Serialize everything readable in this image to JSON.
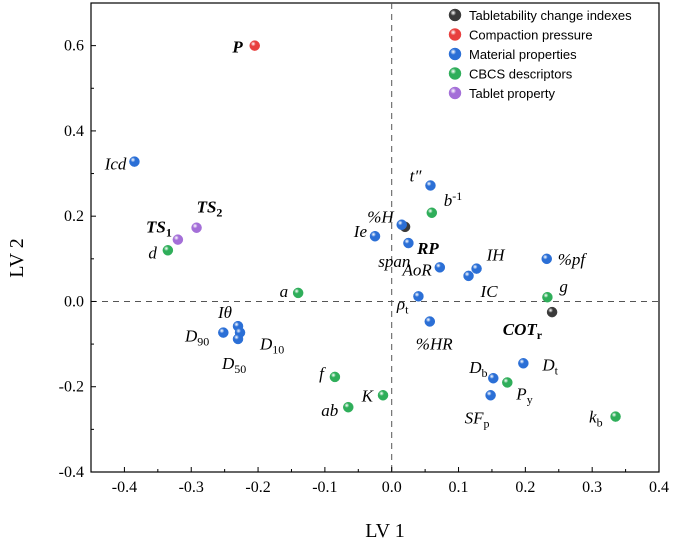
{
  "chart_data": {
    "type": "scatter",
    "xlabel": "LV 1",
    "ylabel": "LV 2",
    "xlim": [
      -0.45,
      0.4
    ],
    "ylim": [
      -0.4,
      0.7
    ],
    "xticks": [
      -0.4,
      -0.3,
      -0.2,
      -0.1,
      0.0,
      0.1,
      0.2,
      0.3,
      0.4
    ],
    "yticks": [
      -0.4,
      -0.2,
      0.0,
      0.2,
      0.4,
      0.6
    ],
    "xtick_labels": [
      "-0.4",
      "-0.3",
      "-0.2",
      "-0.1",
      "0.0",
      "0.1",
      "0.2",
      "0.3",
      "0.4"
    ],
    "ytick_labels": [
      "-0.4",
      "-0.2",
      "0.0",
      "0.2",
      "0.4",
      "0.6"
    ],
    "grid": false,
    "zero_lines": true,
    "legend_position": "top-right",
    "series": [
      {
        "name": "Tabletability change indexes",
        "color": "#3a3a3a",
        "points": [
          {
            "label": "RP",
            "x": 0.02,
            "y": 0.175,
            "bold": true
          },
          {
            "label": "COT",
            "sub": "r",
            "x": 0.24,
            "y": -0.025,
            "bold": true
          }
        ]
      },
      {
        "name": "Compaction pressure",
        "color": "#e8403e",
        "points": [
          {
            "label": "P",
            "x": -0.205,
            "y": 0.6,
            "bold": true,
            "italic": false
          }
        ]
      },
      {
        "name": "Material properties",
        "color": "#2b6fd6",
        "points": [
          {
            "label": "Icd",
            "x": -0.385,
            "y": 0.328
          },
          {
            "label": "t″",
            "x": 0.058,
            "y": 0.272
          },
          {
            "label": "%H",
            "x": 0.015,
            "y": 0.18
          },
          {
            "label": "Ie",
            "x": -0.025,
            "y": 0.153
          },
          {
            "label": "span",
            "x": 0.025,
            "y": 0.137
          },
          {
            "label": "AoR",
            "x": 0.072,
            "y": 0.08
          },
          {
            "label": "IH",
            "x": 0.127,
            "y": 0.077
          },
          {
            "label": "IC",
            "x": 0.115,
            "y": 0.06
          },
          {
            "label": "%pf",
            "x": 0.232,
            "y": 0.1
          },
          {
            "label": "ρ",
            "sub": "t",
            "x": 0.04,
            "y": 0.012
          },
          {
            "label": "%HR",
            "x": 0.057,
            "y": -0.047
          },
          {
            "label": "Iθ",
            "x": -0.23,
            "y": -0.058
          },
          {
            "label": "D",
            "sub": "10",
            "x": -0.227,
            "y": -0.073
          },
          {
            "label": "D",
            "sub": "90",
            "x": -0.252,
            "y": -0.073
          },
          {
            "label": "D",
            "sub": "50",
            "x": -0.23,
            "y": -0.088
          },
          {
            "label": "D",
            "sub": "b",
            "x": 0.152,
            "y": -0.18
          },
          {
            "label": "D",
            "sub": "t",
            "x": 0.197,
            "y": -0.145
          },
          {
            "label": "SF",
            "sub": "p",
            "x": 0.148,
            "y": -0.22
          }
        ]
      },
      {
        "name": "CBCS descriptors",
        "color": "#2fae5a",
        "points": [
          {
            "label": "b",
            "sup": "-1",
            "x": 0.06,
            "y": 0.208
          },
          {
            "label": "d",
            "x": -0.335,
            "y": 0.12
          },
          {
            "label": "a",
            "x": -0.14,
            "y": 0.02
          },
          {
            "label": "g",
            "x": 0.233,
            "y": 0.01
          },
          {
            "label": "f",
            "x": -0.085,
            "y": -0.177
          },
          {
            "label": "ab",
            "x": -0.065,
            "y": -0.248
          },
          {
            "label": "K",
            "x": -0.013,
            "y": -0.22
          },
          {
            "label": "P",
            "sub": "y",
            "x": 0.173,
            "y": -0.19
          },
          {
            "label": "k",
            "sub": "b",
            "x": 0.335,
            "y": -0.27
          }
        ]
      },
      {
        "name": "Tablet property",
        "color": "#a46fd8",
        "points": [
          {
            "label": "TS",
            "sub": "1",
            "x": -0.32,
            "y": 0.145,
            "bold": true
          },
          {
            "label": "TS",
            "sub": "2",
            "x": -0.292,
            "y": 0.173,
            "bold": true
          }
        ]
      }
    ]
  }
}
